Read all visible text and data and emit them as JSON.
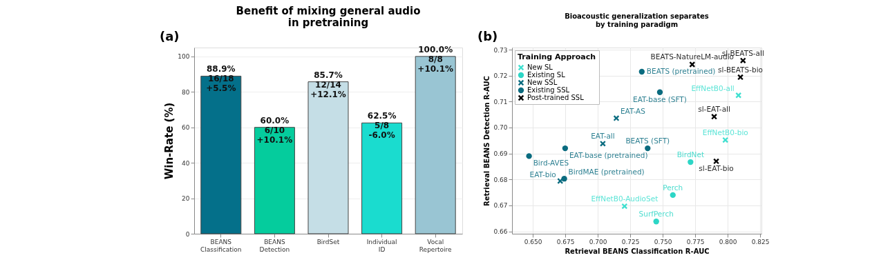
{
  "chart_data": [
    {
      "type": "bar",
      "title": "Benefit of mixing general audio\nin pretraining",
      "ylabel": "Win-Rate (%)",
      "categories": [
        "BEANS\nClassification",
        "BEANS\nDetection",
        "BirdSet",
        "Individual\nID",
        "Vocal\nRepertoire"
      ],
      "values": [
        88.9,
        60.0,
        85.7,
        62.5,
        100.0
      ],
      "colors": [
        "#04708a",
        "#05cc9d",
        "#c5dee6",
        "#1adccf",
        "#99c5d3"
      ],
      "value_labels": [
        "88.9%\n16/18\n+5.5%",
        "60.0%\n6/10\n+10.1%",
        "85.7%\n12/14\n+12.1%",
        "62.5%\n5/8\n-6.0%",
        "100.0%\n8/8\n+10.1%"
      ],
      "ylim": [
        0,
        105
      ],
      "yticks": [
        0,
        20,
        40,
        60,
        80,
        100
      ],
      "grid": "y",
      "annotations": [
        "(a)"
      ]
    },
    {
      "type": "scatter",
      "title": "Bioacoustic generalization separates\nby training paradigm",
      "xlabel": "Retrieval BEANS Classification R-AUC",
      "ylabel": "Retrieval BEANS Detection R-AUC",
      "legend_title": "Training Approach",
      "legend": "top left",
      "grid": true,
      "xlim": [
        0.634,
        0.826
      ],
      "ylim": [
        0.6591,
        0.7308
      ],
      "xticks": [
        {
          "value": 0.65,
          "label": "0.650"
        },
        {
          "value": 0.675,
          "label": "0.675"
        },
        {
          "value": 0.7,
          "label": "0.700"
        },
        {
          "value": 0.725,
          "label": "0.725"
        },
        {
          "value": 0.75,
          "label": "0.750"
        },
        {
          "value": 0.775,
          "label": "0.775"
        },
        {
          "value": 0.8,
          "label": "0.800"
        },
        {
          "value": 0.825,
          "label": "0.825"
        }
      ],
      "yticks": [
        0.66,
        0.67,
        0.68,
        0.69,
        {
          "value": 0.7,
          "label": "0.70"
        },
        0.71,
        0.72,
        0.73
      ],
      "series": [
        {
          "name": "New SL",
          "color": "#40e0d0",
          "marker": "cross",
          "x": [
            0.8083,
            0.7982,
            0.7206
          ],
          "values": [
            0.7124,
            0.6952,
            0.6697
          ]
        },
        {
          "name": "Existing SL",
          "color": "#2dd6c6",
          "marker": "circle",
          "x": [
            0.7714,
            0.7578,
            0.745
          ],
          "values": [
            0.6867,
            0.674,
            0.6638
          ]
        },
        {
          "name": "New SSL",
          "color": "#0b6c80",
          "marker": "cross",
          "x": [
            0.7143,
            0.7039,
            0.6711
          ],
          "values": [
            0.7036,
            0.6938,
            0.6794
          ]
        },
        {
          "name": "Existing SSL",
          "color": "#0a6b7f",
          "marker": "circle",
          "x": [
            0.7339,
            0.7478,
            0.6749,
            0.7384,
            0.6471,
            0.6742
          ],
          "values": [
            0.7215,
            0.7136,
            0.692,
            0.692,
            0.689,
            0.6803
          ]
        },
        {
          "name": "Post-trained SSL",
          "color": "#000000",
          "marker": "cross",
          "x": [
            0.7727,
            0.8118,
            0.8098,
            0.7896,
            0.7912
          ],
          "values": [
            0.7243,
            0.7258,
            0.7194,
            0.7042,
            0.687
          ]
        }
      ],
      "annotations": [
        "(b)",
        {
          "text": "EffNetB0-all",
          "x": 0.8083,
          "y": 0.7124
        },
        {
          "text": "EffNetB0-bio",
          "x": 0.7982,
          "y": 0.6952
        },
        {
          "text": "EffNetB0-AudioSet",
          "x": 0.7206,
          "y": 0.6697
        },
        {
          "text": "BirdNet",
          "x": 0.7714,
          "y": 0.6867
        },
        {
          "text": "Perch",
          "x": 0.7578,
          "y": 0.674
        },
        {
          "text": "SurfPerch",
          "x": 0.745,
          "y": 0.6638
        },
        {
          "text": "EAT-AS",
          "x": 0.7143,
          "y": 0.7036
        },
        {
          "text": "EAT-all",
          "x": 0.7039,
          "y": 0.6938
        },
        {
          "text": "EAT-bio",
          "x": 0.6711,
          "y": 0.6794
        },
        {
          "text": "BEATS (pretrained)",
          "x": 0.7339,
          "y": 0.7215
        },
        {
          "text": "EAT-base (SFT)",
          "x": 0.7478,
          "y": 0.7136
        },
        {
          "text": "EAT-base (pretrained)",
          "x": 0.6749,
          "y": 0.692
        },
        {
          "text": "BEATS (SFT)",
          "x": 0.7384,
          "y": 0.692
        },
        {
          "text": "Bird-AVES",
          "x": 0.6471,
          "y": 0.689
        },
        {
          "text": "BirdMAE (pretrained)",
          "x": 0.6742,
          "y": 0.6803
        },
        {
          "text": "BEATS-NatureLM-audio",
          "x": 0.7727,
          "y": 0.7243
        },
        {
          "text": "sl-BEATS-all",
          "x": 0.8118,
          "y": 0.7258
        },
        {
          "text": "sl-BEATS-bio",
          "x": 0.8098,
          "y": 0.7194
        },
        {
          "text": "sl-EAT-all",
          "x": 0.7896,
          "y": 0.7042
        },
        {
          "text": "sl-EAT-bio",
          "x": 0.7912,
          "y": 0.687
        }
      ]
    }
  ]
}
